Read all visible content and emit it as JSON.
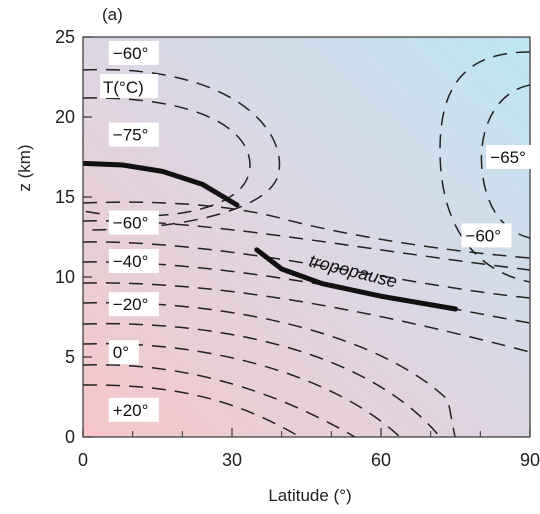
{
  "chart_data": {
    "type": "contour",
    "panel_label": "(a)",
    "xlabel": "Latitude (°)",
    "ylabel": "z (km)",
    "xlim": [
      0,
      90
    ],
    "ylim": [
      0,
      25
    ],
    "x_ticks": [
      "0",
      "30",
      "60",
      "90"
    ],
    "y_ticks": [
      "0",
      "5",
      "10",
      "15",
      "20",
      "25"
    ],
    "variable_label": "T(°C)",
    "contour_labels": [
      {
        "text": "+20°",
        "lat": 6,
        "z": 1.7
      },
      {
        "text": "0°",
        "lat": 6,
        "z": 5.3
      },
      {
        "text": "−20°",
        "lat": 6,
        "z": 8.3
      },
      {
        "text": "−40°",
        "lat": 6,
        "z": 11.0
      },
      {
        "text": "−60°",
        "lat": 6,
        "z": 13.4
      },
      {
        "text": "−75°",
        "lat": 6,
        "z": 18.9
      },
      {
        "text": "−60°",
        "lat": 6,
        "z": 24.0
      },
      {
        "text": "−65°",
        "lat": 82,
        "z": 17.5
      },
      {
        "text": "−60°",
        "lat": 77,
        "z": 12.6
      }
    ],
    "tropopause": {
      "label": "tropopause",
      "segments": [
        [
          [
            0,
            17.1
          ],
          [
            8,
            17.0
          ],
          [
            16,
            16.6
          ],
          [
            24,
            15.8
          ],
          [
            31,
            14.5
          ]
        ],
        [
          [
            35,
            11.7
          ],
          [
            40,
            10.5
          ],
          [
            48,
            9.6
          ],
          [
            60,
            8.8
          ],
          [
            75,
            8.0
          ]
        ]
      ]
    },
    "background": {
      "warm": "#f6c6c8",
      "cool": "#bfe6f4",
      "mid": "#ddd6e3"
    }
  }
}
